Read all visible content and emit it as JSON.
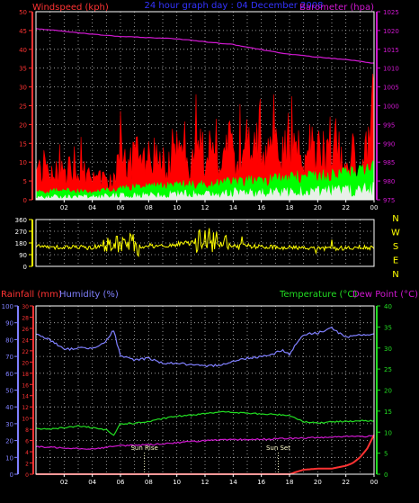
{
  "header": {
    "left": "Windspeed (kph)",
    "center": "24 hour graph day : 04 December 2008",
    "right": "Barometer (hpa)"
  },
  "colors": {
    "background": "#000000",
    "frame": "#ffffff",
    "grid": "#b8b8b8",
    "wind_axis": "#ff3333",
    "gust": "#ff0000",
    "wind_avg": "#00ff00",
    "wind_low": "#e8f0e8",
    "barometer": "#d018d0",
    "direction": "#ffff00",
    "rainfall": "#ff3333",
    "humidity": "#8080ff",
    "temperature": "#22dd22",
    "dew_point": "#d018d0",
    "title_blue": "#3333ff",
    "sun_marker": "#ffffcc"
  },
  "chart_data": [
    {
      "type": "area",
      "name": "wind-barometer",
      "ylabel_left": "Windspeed (kph)",
      "ylabel_right": "Barometer (hpa)",
      "ylim_left": [
        0,
        50
      ],
      "ylim_right": [
        975,
        1025
      ],
      "left_ticks": [
        0,
        5,
        10,
        15,
        20,
        25,
        30,
        35,
        40,
        45,
        50
      ],
      "right_ticks": [
        975,
        980,
        985,
        990,
        995,
        1000,
        1005,
        1010,
        1015,
        1020,
        1025
      ],
      "x_ticks": [
        "02",
        "04",
        "06",
        "08",
        "10",
        "12",
        "14",
        "16",
        "18",
        "20",
        "22",
        "00"
      ],
      "grid": true,
      "gust_profile": {
        "x": [
          0,
          0.5,
          1,
          1.5,
          2,
          2.5,
          3,
          3.5,
          4,
          4.5,
          5,
          5.5,
          6,
          6.5,
          7,
          7.5,
          8,
          8.5,
          9,
          9.5,
          10,
          10.5,
          11,
          11.5,
          12,
          12.5,
          13,
          13.5,
          14,
          14.5,
          15,
          15.5,
          16,
          16.5,
          17,
          17.5,
          18,
          18.5,
          19,
          19.5,
          20,
          20.5,
          21,
          21.5,
          22,
          22.5,
          23,
          23.5,
          24
        ],
        "y": [
          10,
          9,
          12,
          10,
          8,
          11,
          13,
          9,
          8,
          7,
          6,
          7,
          14,
          12,
          16,
          12,
          13,
          14,
          10,
          12,
          16,
          18,
          14,
          17,
          16,
          15,
          14,
          18,
          17,
          14,
          16,
          18,
          17,
          15,
          18,
          16,
          20,
          16,
          15,
          17,
          18,
          15,
          20,
          17,
          12,
          14,
          12,
          18,
          30
        ]
      },
      "avg_profile": {
        "x": [
          0,
          2,
          4,
          6,
          8,
          10,
          12,
          14,
          16,
          18,
          20,
          22,
          23,
          24
        ],
        "y": [
          2,
          2.5,
          2,
          3,
          3.5,
          4,
          4,
          5,
          5,
          6,
          6,
          7,
          8,
          8
        ]
      },
      "low_profile": {
        "x": [
          0,
          2,
          4,
          6,
          8,
          10,
          12,
          14,
          16,
          18,
          20,
          22,
          24
        ],
        "y": [
          1,
          1.5,
          1.5,
          2,
          2,
          2.5,
          2.5,
          3,
          3,
          3.5,
          3.5,
          4,
          5
        ]
      },
      "barometer": {
        "x": [
          0,
          2,
          4,
          6,
          8,
          10,
          12,
          14,
          16,
          18,
          20,
          22,
          23,
          24
        ],
        "y": [
          1020.5,
          1019.8,
          1019.0,
          1018.4,
          1018.1,
          1017.8,
          1017.0,
          1016.3,
          1014.9,
          1013.7,
          1012.9,
          1012.3,
          1011.8,
          1011.3
        ]
      }
    },
    {
      "type": "line",
      "name": "wind-direction",
      "ylim": [
        0,
        360
      ],
      "left_ticks": [
        0,
        90,
        180,
        270,
        360
      ],
      "right_labels": [
        "N",
        "W",
        "S",
        "E",
        "N"
      ],
      "x_ticks": [
        "02",
        "04",
        "06",
        "08",
        "10",
        "12",
        "14",
        "16",
        "18",
        "20",
        "22",
        "00"
      ],
      "grid": true,
      "profile": {
        "x": [
          0,
          2,
          4,
          5,
          5.5,
          6,
          6.5,
          7,
          8,
          9,
          10,
          11,
          12,
          13,
          14,
          16,
          18,
          20,
          22,
          24
        ],
        "y": [
          150,
          150,
          145,
          175,
          230,
          140,
          200,
          150,
          160,
          150,
          170,
          180,
          220,
          170,
          160,
          150,
          145,
          140,
          140,
          145
        ]
      }
    },
    {
      "type": "line",
      "name": "climate",
      "labels": {
        "rainfall": "Rainfall (mm)",
        "humidity": "Humidity (%)",
        "temperature": "Temperature (°C)",
        "dew_point": "Dew Point (°C)"
      },
      "humidity_ticks": [
        0,
        10,
        20,
        30,
        40,
        50,
        60,
        70,
        80,
        90,
        100
      ],
      "rain_ticks": [
        0,
        2,
        4,
        6,
        8,
        10,
        12,
        14,
        16,
        18,
        20,
        22,
        24,
        26,
        28,
        30
      ],
      "temp_ticks": [
        0,
        5,
        10,
        15,
        20,
        25,
        30,
        35,
        40
      ],
      "x_ticks": [
        "02",
        "04",
        "06",
        "08",
        "10",
        "12",
        "14",
        "16",
        "18",
        "20",
        "22",
        "00"
      ],
      "annotations": {
        "sunrise": "Sun Rise",
        "sunset": "Sun Set"
      },
      "sunrise_hour": 7.7,
      "sunset_hour": 17.2,
      "grid": true,
      "humidity": {
        "x": [
          0,
          1,
          2,
          3,
          4,
          5,
          5.5,
          6,
          7,
          8,
          9,
          10,
          11,
          12,
          13,
          14,
          15,
          16,
          17,
          17.5,
          18,
          18.5,
          19,
          20,
          21,
          22,
          23,
          24
        ],
        "y": [
          83,
          80,
          74,
          75,
          75,
          79,
          86,
          70,
          68,
          69,
          66,
          66,
          65,
          64,
          65,
          67,
          69,
          70,
          72,
          74,
          71,
          78,
          83,
          84,
          87,
          81,
          83,
          83
        ]
      },
      "temperature": {
        "x": [
          0,
          1,
          2,
          3,
          4,
          5,
          5.5,
          6,
          7,
          8,
          9,
          10,
          11,
          12,
          13,
          14,
          15,
          16,
          17,
          18,
          19,
          20,
          21,
          22,
          23,
          24
        ],
        "y": [
          10.8,
          10.8,
          11.0,
          11.5,
          11.0,
          10.5,
          9.2,
          12.0,
          12.1,
          12.5,
          13.2,
          13.8,
          14.0,
          14.5,
          14.8,
          14.7,
          14.5,
          14.3,
          14.2,
          14.0,
          12.5,
          12.2,
          12.4,
          12.6,
          12.7,
          12.7
        ]
      },
      "dew_point": {
        "x": [
          0,
          2,
          4,
          6,
          8,
          10,
          12,
          14,
          16,
          18,
          20,
          22,
          24
        ],
        "y": [
          6.5,
          6.3,
          6.0,
          6.8,
          7.0,
          7.5,
          8.0,
          8.2,
          8.3,
          8.5,
          8.7,
          9.0,
          9.0
        ]
      },
      "rainfall": {
        "x": [
          0,
          18,
          18.6,
          19,
          20,
          21,
          22,
          22.5,
          23,
          23.5,
          24
        ],
        "y": [
          0,
          0,
          0.5,
          0.8,
          1.0,
          1.0,
          1.5,
          2.0,
          3.0,
          4.5,
          7.0
        ]
      }
    }
  ]
}
